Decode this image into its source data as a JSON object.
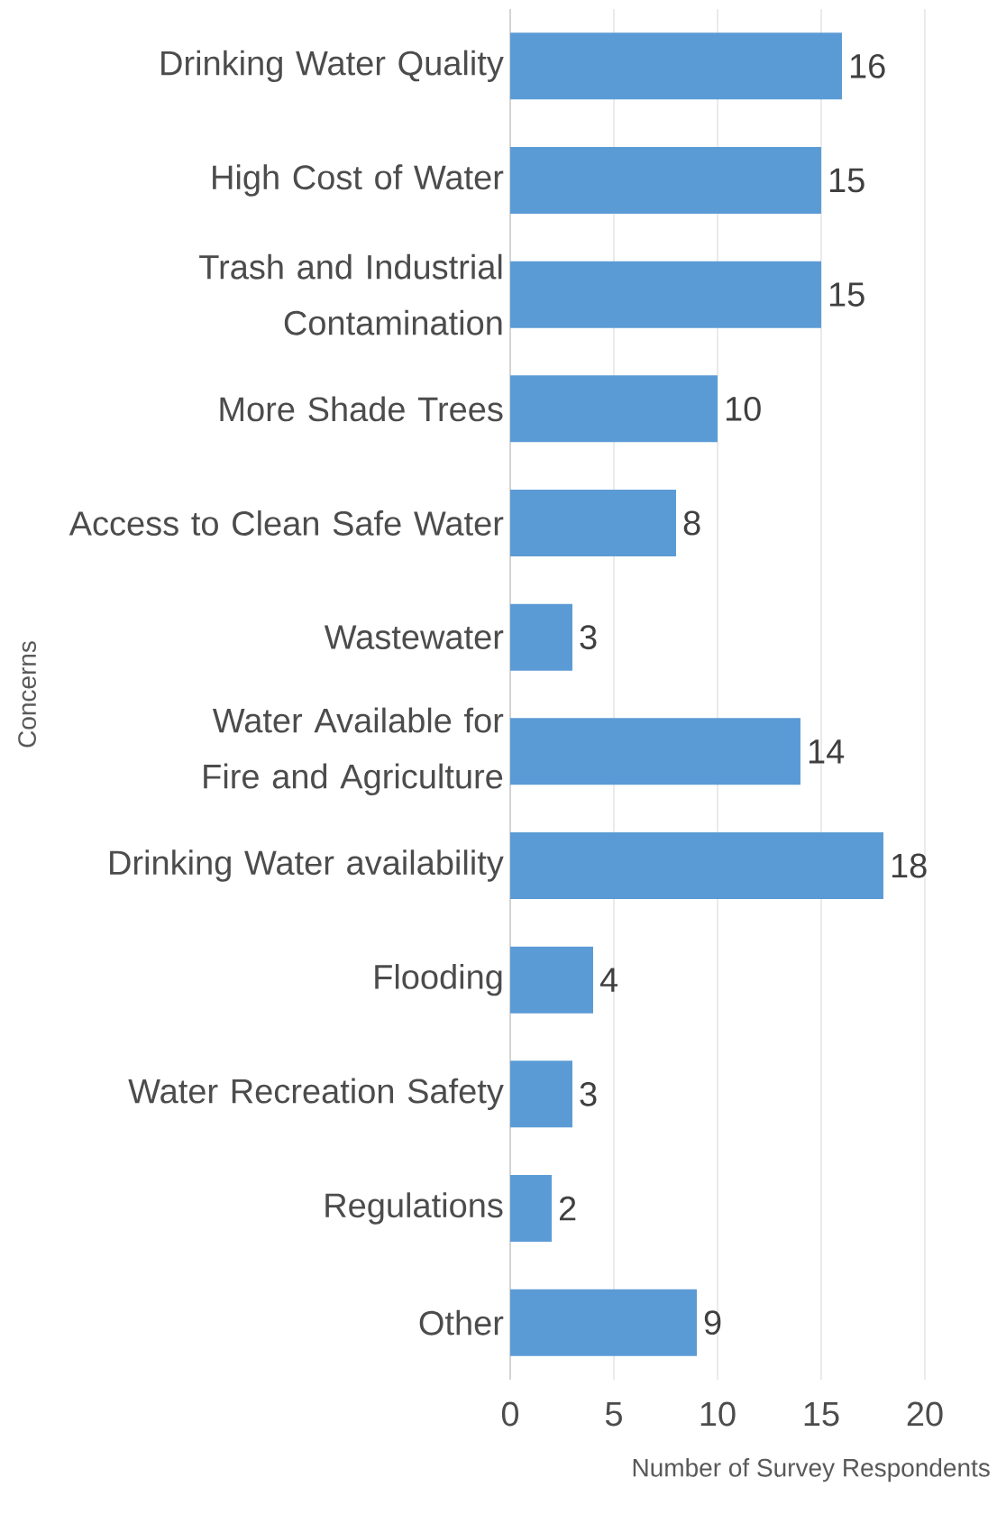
{
  "chart_data": {
    "type": "bar",
    "orientation": "horizontal",
    "xlabel": "Number of Survey Respondents",
    "ylabel": "Concerns",
    "categories": [
      "Drinking Water Quality",
      "High Cost of Water",
      "Trash and Industrial Contamination",
      "More Shade Trees",
      "Access to Clean Safe Water",
      "Wastewater",
      "Water Available for Fire and Agriculture",
      "Drinking Water availability",
      "Flooding",
      "Water Recreation Safety",
      "Regulations",
      "Other"
    ],
    "values": [
      16,
      15,
      15,
      10,
      8,
      3,
      14,
      18,
      4,
      3,
      2,
      9
    ],
    "color": "#5b9bd5",
    "xlim": [
      0,
      20
    ],
    "xticks": [
      0,
      5,
      10,
      15,
      20
    ],
    "grid": "x",
    "data_labels": true
  }
}
